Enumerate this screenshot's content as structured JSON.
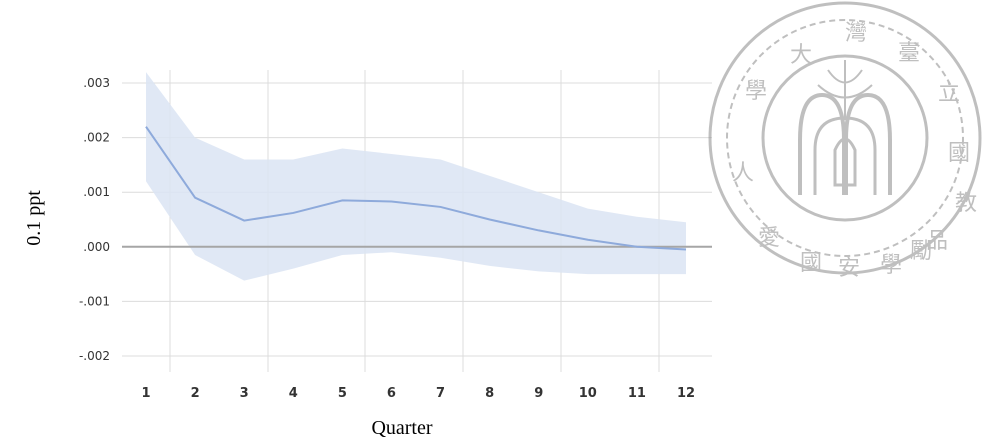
{
  "chart_data": {
    "type": "line",
    "title": "",
    "xlabel": "Quarter",
    "ylabel": "0.1 ppt",
    "x": [
      1,
      2,
      3,
      4,
      5,
      6,
      7,
      8,
      9,
      10,
      11,
      12
    ],
    "series": [
      {
        "values": [
          0.0022,
          0.0009,
          0.00048,
          0.00062,
          0.00085,
          0.00083,
          0.00073,
          0.0005,
          0.0003,
          0.00013,
          0.0,
          -5e-05
        ]
      }
    ],
    "band": {
      "upper": [
        0.0032,
        0.002,
        0.0016,
        0.0016,
        0.0018,
        0.0017,
        0.0016,
        0.0013,
        0.001,
        0.0007,
        0.00055,
        0.00045
      ],
      "lower": [
        0.0012,
        -0.00015,
        -0.00062,
        -0.0004,
        -0.00015,
        -0.0001,
        -0.0002,
        -0.00035,
        -0.00045,
        -0.0005,
        -0.0005,
        -0.0005
      ]
    },
    "y_ticks": [
      ".003",
      ".002",
      ".001",
      ".000",
      "-.001",
      "-.002"
    ],
    "y_tick_values": [
      0.003,
      0.002,
      0.001,
      0.0,
      -0.001,
      -0.002
    ],
    "x_ticks": [
      "1",
      "2",
      "3",
      "4",
      "5",
      "6",
      "7",
      "8",
      "9",
      "10",
      "11",
      "12"
    ],
    "ylim": [
      -0.0022,
      0.0033
    ],
    "grid": true,
    "line_color": "#8eaadb",
    "band_color": "#dbe4f3",
    "zero_line_color": "#a6a6a6"
  },
  "logo": {
    "name": "National Taiwan University seal",
    "text": "國立臺灣大學 · 學動品教 · 安"
  }
}
